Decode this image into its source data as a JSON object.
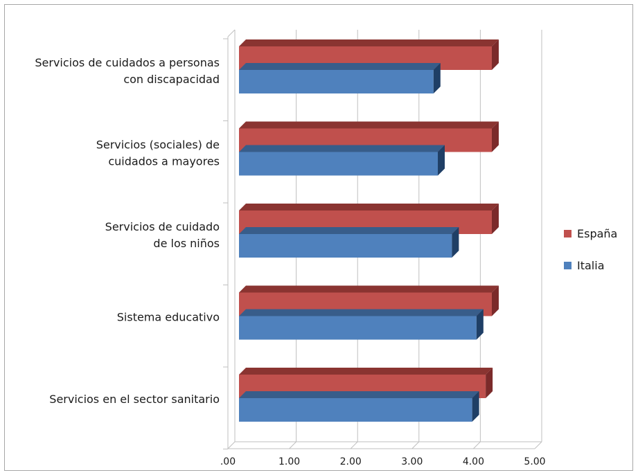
{
  "chart_data": {
    "type": "bar",
    "orientation": "horizontal",
    "three_d": true,
    "title": "",
    "xlabel": "",
    "ylabel": "",
    "xlim": [
      0,
      5
    ],
    "tick_labels": [
      ".00",
      "1.00",
      "2.00",
      "3.00",
      "4.00",
      "5.00"
    ],
    "grid": true,
    "legend_position": "right",
    "categories": [
      [
        "Servicios de cuidados a personas",
        "con discapacidad"
      ],
      [
        "Servicios (sociales) de",
        "cuidados a mayores"
      ],
      [
        "Servicios de cuidado",
        "de los niños"
      ],
      [
        "Sistema educativo"
      ],
      [
        "Servicios en el sector sanitario"
      ]
    ],
    "series": [
      {
        "name": "España",
        "color": "#c0504d",
        "side_color": "#7b2a2a",
        "top_color": "#8a3431",
        "values": [
          4.3,
          4.3,
          4.3,
          4.3,
          4.2
        ]
      },
      {
        "name": "Italia",
        "color": "#4f81bd",
        "side_color": "#1f3f66",
        "top_color": "#385d8a",
        "values": [
          3.35,
          3.42,
          3.65,
          4.05,
          3.98
        ]
      }
    ]
  }
}
